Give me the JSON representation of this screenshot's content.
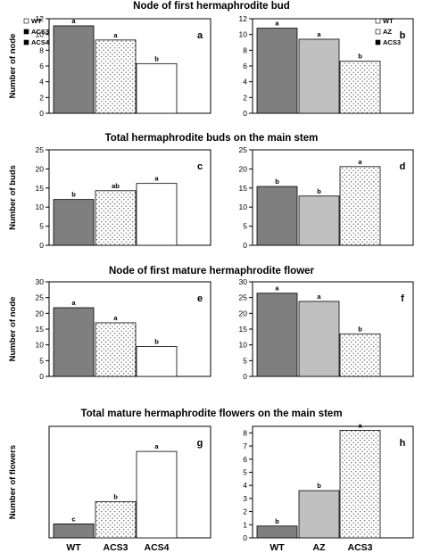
{
  "colors": {
    "WT": "#7f7f7f",
    "AZ": "#c0c0c0",
    "ACS3_left": "dots",
    "ACS3_right": "dots",
    "ACS4": "#ffffff"
  },
  "chart_data": [
    {
      "type": "bar",
      "panel": "a",
      "title": "Node of first hermaphrodite bud",
      "ylabel": "Number of node",
      "categories": [
        "WT",
        "ACS3",
        "ACS4"
      ],
      "values": [
        11.1,
        9.3,
        6.3
      ],
      "letters": [
        "a",
        "a",
        "b"
      ],
      "ylim": [
        0,
        12
      ],
      "yticks": [
        0,
        2,
        4,
        6,
        8,
        10,
        12
      ],
      "legend": [
        "WT",
        "ACS3",
        "ACS4"
      ],
      "legend_position": "top-left",
      "show_categories": false
    },
    {
      "type": "bar",
      "panel": "b",
      "ylabel": "",
      "categories": [
        "WT",
        "AZ",
        "ACS3"
      ],
      "values": [
        10.8,
        9.4,
        6.6
      ],
      "letters": [
        "a",
        "a",
        "b"
      ],
      "ylim": [
        0,
        12
      ],
      "yticks": [
        0,
        2,
        4,
        6,
        8,
        10,
        12
      ],
      "legend": [
        "WT",
        "AZ",
        "ACS3"
      ],
      "legend_position": "top-right",
      "show_categories": false
    },
    {
      "type": "bar",
      "panel": "c",
      "title": "Total hermaphrodite buds on the main stem",
      "ylabel": "Number of buds",
      "categories": [
        "WT",
        "ACS3",
        "ACS4"
      ],
      "values": [
        12.0,
        14.3,
        16.2
      ],
      "letters": [
        "b",
        "ab",
        "a"
      ],
      "ylim": [
        0,
        25
      ],
      "yticks": [
        0,
        5,
        10,
        15,
        20,
        25
      ],
      "show_categories": false
    },
    {
      "type": "bar",
      "panel": "d",
      "ylabel": "",
      "categories": [
        "WT",
        "AZ",
        "ACS3"
      ],
      "values": [
        15.4,
        12.9,
        20.6
      ],
      "letters": [
        "b",
        "b",
        "a"
      ],
      "ylim": [
        0,
        25
      ],
      "yticks": [
        0,
        5,
        10,
        15,
        20,
        25
      ],
      "show_categories": false
    },
    {
      "type": "bar",
      "panel": "e",
      "title": "Node of first mature hermaphrodite flower",
      "ylabel": "Number of node",
      "categories": [
        "WT",
        "ACS3",
        "ACS4"
      ],
      "values": [
        21.8,
        17.0,
        9.5
      ],
      "letters": [
        "a",
        "a",
        "b"
      ],
      "ylim": [
        0,
        30
      ],
      "yticks": [
        0,
        5,
        10,
        15,
        20,
        25,
        30
      ],
      "show_categories": false
    },
    {
      "type": "bar",
      "panel": "f",
      "ylabel": "",
      "categories": [
        "WT",
        "AZ",
        "ACS3"
      ],
      "values": [
        26.4,
        23.8,
        13.5
      ],
      "letters": [
        "a",
        "a",
        "b"
      ],
      "ylim": [
        0,
        30
      ],
      "yticks": [
        0,
        5,
        10,
        15,
        20,
        25,
        30
      ],
      "show_categories": false
    },
    {
      "type": "bar",
      "panel": "g",
      "title": "Total mature hermaphrodite flowers on the main stem",
      "ylabel": "Number of flowers",
      "categories": [
        "WT",
        "ACS3",
        "ACS4"
      ],
      "values": [
        1.0,
        2.6,
        6.2
      ],
      "letters": [
        "c",
        "b",
        "a"
      ],
      "ylim": [
        0,
        8
      ],
      "yticks": [],
      "show_categories": true
    },
    {
      "type": "bar",
      "panel": "h",
      "ylabel": "",
      "categories": [
        "WT",
        "AZ",
        "ACS3"
      ],
      "values": [
        0.9,
        3.6,
        8.2
      ],
      "letters": [
        "b",
        "b",
        "a"
      ],
      "ylim": [
        0,
        8.5
      ],
      "yticks": [
        0,
        1,
        2,
        3,
        4,
        5,
        6,
        7,
        8
      ],
      "show_categories": true
    }
  ]
}
